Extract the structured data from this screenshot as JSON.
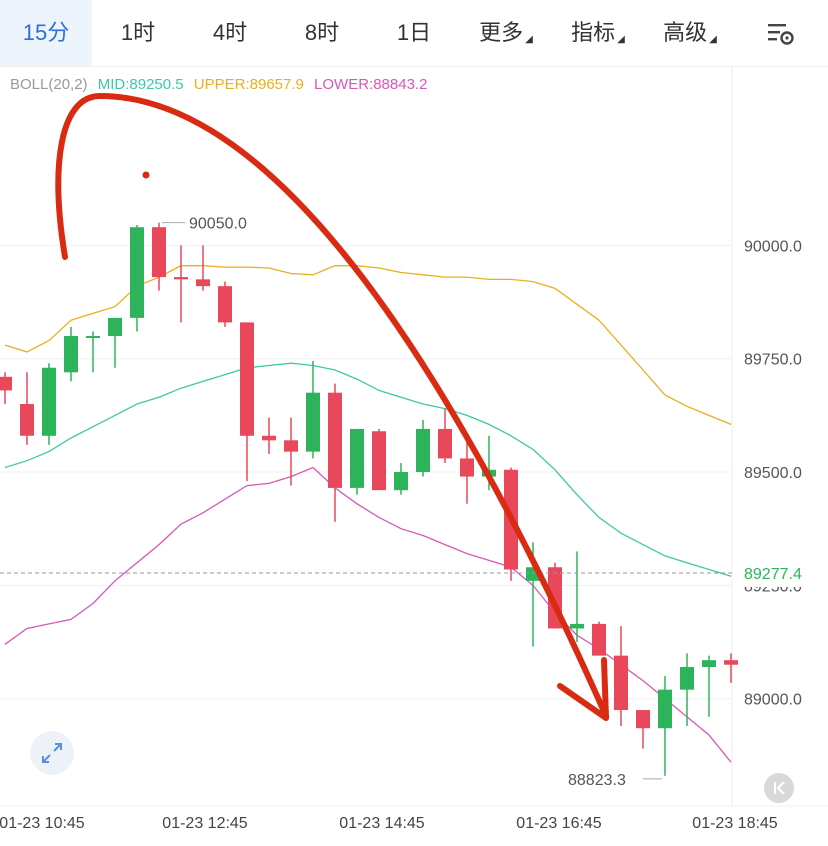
{
  "tabs": [
    {
      "label": "15分",
      "active": true
    },
    {
      "label": "1时"
    },
    {
      "label": "4时"
    },
    {
      "label": "8时"
    },
    {
      "label": "1日"
    },
    {
      "label": "更多",
      "dropdown": true
    },
    {
      "label": "指标",
      "dropdown": true
    },
    {
      "label": "高级",
      "dropdown": true
    }
  ],
  "icons": {
    "settings": "chart-settings-icon",
    "expand": "expand-arrows-icon",
    "back": "scroll-to-latest-icon"
  },
  "legend": {
    "name": "BOLL(20,2)",
    "mid": "MID:89250.5",
    "upper": "UPPER:89657.9",
    "lower": "LOWER:88843.2"
  },
  "colors": {
    "up": "#2db35a",
    "down": "#e8485a",
    "upper": "#e8b020",
    "mid": "#3cc9a8",
    "lower": "#d957b4",
    "arrow": "#d92a12",
    "accent": "#2f6fd6"
  },
  "chart_data": {
    "type": "candlestick",
    "ylim": [
      88770,
      90325
    ],
    "y_ticks": [
      "90000.0",
      "89750.0",
      "89500.0",
      "89250.0",
      "89000.0"
    ],
    "x_labels": [
      "01-23 10:45",
      "01-23 12:45",
      "01-23 14:45",
      "01-23 16:45",
      "01-23 18:45"
    ],
    "current_price": "89277.4",
    "high_label": "90050.0",
    "low_label": "88823.3",
    "candles": [
      [
        89710,
        89720,
        89650,
        89680
      ],
      [
        89650,
        89720,
        89560,
        89580
      ],
      [
        89580,
        89740,
        89560,
        89730
      ],
      [
        89720,
        89820,
        89700,
        89800
      ],
      [
        89800,
        89810,
        89720,
        89800
      ],
      [
        89800,
        89840,
        89730,
        89840
      ],
      [
        89840,
        90045,
        89810,
        90040
      ],
      [
        90040,
        90050,
        89900,
        89930
      ],
      [
        89930,
        90000,
        89830,
        89925
      ],
      [
        89925,
        90000,
        89900,
        89910
      ],
      [
        89910,
        89920,
        89820,
        89830
      ],
      [
        89830,
        89830,
        89480,
        89580
      ],
      [
        89580,
        89620,
        89540,
        89570
      ],
      [
        89570,
        89620,
        89470,
        89545
      ],
      [
        89545,
        89745,
        89530,
        89675
      ],
      [
        89675,
        89695,
        89390,
        89465
      ],
      [
        89465,
        89590,
        89450,
        89595
      ],
      [
        89590,
        89595,
        89465,
        89460
      ],
      [
        89460,
        89520,
        89450,
        89500
      ],
      [
        89500,
        89615,
        89490,
        89595
      ],
      [
        89595,
        89640,
        89520,
        89530
      ],
      [
        89530,
        89580,
        89430,
        89490
      ],
      [
        89490,
        89580,
        89460,
        89505
      ],
      [
        89505,
        89510,
        89260,
        89285
      ],
      [
        89260,
        89345,
        89115,
        89290
      ],
      [
        89290,
        89300,
        89170,
        89155
      ],
      [
        89155,
        89325,
        89125,
        89165
      ],
      [
        89165,
        89170,
        89100,
        89095
      ],
      [
        89095,
        89160,
        88940,
        88975
      ],
      [
        88975,
        88970,
        88890,
        88935
      ],
      [
        88935,
        89050,
        88830,
        89020
      ],
      [
        89020,
        89100,
        88940,
        89070
      ],
      [
        89070,
        89095,
        88960,
        89085
      ],
      [
        89085,
        89100,
        89035,
        89075
      ]
    ],
    "series": [
      {
        "name": "UPPER",
        "values": [
          89780,
          89765,
          89790,
          89835,
          89850,
          89865,
          89910,
          89930,
          89955,
          89955,
          89952,
          89952,
          89950,
          89938,
          89935,
          89955,
          89955,
          89950,
          89940,
          89935,
          89930,
          89930,
          89925,
          89925,
          89920,
          89905,
          89870,
          89835,
          89780,
          89725,
          89670,
          89645,
          89625,
          89605
        ]
      },
      {
        "name": "MID",
        "values": [
          89510,
          89525,
          89545,
          89575,
          89600,
          89625,
          89650,
          89665,
          89685,
          89700,
          89715,
          89730,
          89735,
          89740,
          89735,
          89725,
          89705,
          89680,
          89665,
          89650,
          89640,
          89625,
          89605,
          89580,
          89550,
          89505,
          89450,
          89400,
          89365,
          89340,
          89315,
          89300,
          89285,
          89270
        ]
      },
      {
        "name": "LOWER",
        "values": [
          89120,
          89155,
          89165,
          89175,
          89210,
          89260,
          89300,
          89340,
          89385,
          89410,
          89440,
          89470,
          89475,
          89490,
          89510,
          89465,
          89430,
          89400,
          89375,
          89360,
          89340,
          89320,
          89305,
          89290,
          89250,
          89190,
          89140,
          89110,
          89075,
          89040,
          89000,
          88960,
          88920,
          88860
        ]
      }
    ]
  }
}
